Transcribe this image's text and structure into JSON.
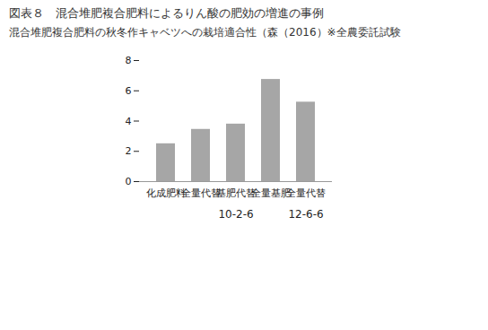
{
  "chart_data": {
    "type": "bar",
    "title": "図表８　混合堆肥複合肥料によるりん酸の肥効の増進の事例",
    "subtitle": "混合堆肥複合肥料の秋冬作キャベツへの栽培適合性（森（2016）※全農委託試験",
    "categories": [
      "化成肥料",
      "全量代替",
      "基肥代替",
      "全量基肥",
      "全量代替"
    ],
    "values": [
      2.5,
      3.45,
      3.8,
      6.75,
      5.25
    ],
    "groups": [
      {
        "label": "10-2-6",
        "categories": [
          1,
          2,
          3
        ]
      },
      {
        "label": "12-6-6",
        "categories": [
          4
        ]
      }
    ],
    "color": "#a6a6a6",
    "ylim": [
      0,
      8
    ],
    "yticks": [
      0,
      2,
      4,
      6,
      8
    ],
    "grid": false
  }
}
